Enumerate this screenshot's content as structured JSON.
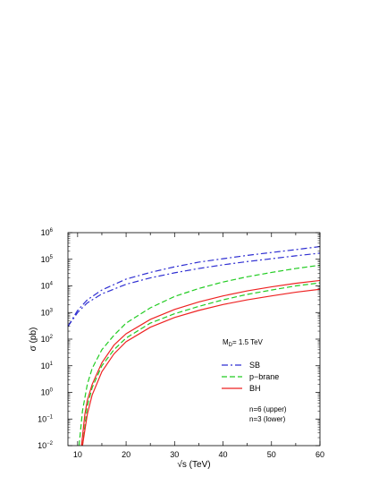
{
  "chart_data": {
    "type": "line",
    "xlabel": "√s  (TeV)",
    "ylabel": "σ  (pb)",
    "xlim": [
      8,
      60
    ],
    "ylim_log10": [
      -2,
      6
    ],
    "yscale": "log",
    "grid": false,
    "legend_position": "right",
    "x_ticks": [
      "10",
      "20",
      "30",
      "40",
      "50",
      "60"
    ],
    "y_tick_bases": [
      "10",
      "10",
      "10",
      "10",
      "10",
      "10",
      "10",
      "10",
      "10"
    ],
    "y_tick_exps": [
      "−2",
      "−1",
      "0",
      "1",
      "2",
      "3",
      "4",
      "5",
      "6"
    ],
    "annotations": {
      "md_main": "M",
      "md_sub": "D",
      "md_value": "= 1.5 TeV",
      "n_upper": "n=6 (upper)",
      "n_lower": "n=3 (lower)"
    },
    "series": [
      {
        "name": "SB",
        "variant": "upper",
        "color": "#2f2fd2",
        "dash": "dashdot",
        "x": [
          8,
          10,
          12,
          15,
          20,
          25,
          30,
          35,
          40,
          45,
          50,
          55,
          60
        ],
        "y": [
          300,
          1200,
          3000,
          7000,
          18000,
          32000,
          52000,
          78000,
          105000,
          140000,
          180000,
          230000,
          300000
        ]
      },
      {
        "name": "SB",
        "variant": "lower",
        "color": "#2f2fd2",
        "dash": "dashdot",
        "x": [
          8,
          10,
          12,
          15,
          20,
          25,
          30,
          35,
          40,
          45,
          50,
          55,
          60
        ],
        "y": [
          300,
          1000,
          2300,
          5000,
          11500,
          20000,
          31000,
          45000,
          62000,
          82000,
          105000,
          135000,
          170000
        ]
      },
      {
        "name": "p−brane",
        "variant": "upper",
        "color": "#22cc22",
        "dash": "dashed",
        "x": [
          10.3,
          11,
          12,
          13,
          15,
          17.5,
          20,
          25,
          30,
          35,
          40,
          45,
          50,
          55,
          60
        ],
        "y": [
          0.01,
          0.2,
          2,
          8,
          40,
          140,
          400,
          1500,
          4000,
          8000,
          14000,
          22000,
          32000,
          45000,
          60000
        ]
      },
      {
        "name": "p−brane",
        "variant": "lower",
        "color": "#22cc22",
        "dash": "dashed",
        "x": [
          11,
          12,
          13,
          15,
          17.5,
          20,
          25,
          30,
          35,
          40,
          45,
          50,
          55,
          60
        ],
        "y": [
          0.01,
          0.3,
          1.5,
          10,
          40,
          110,
          400,
          900,
          1700,
          3000,
          4800,
          7000,
          10000,
          13000
        ]
      },
      {
        "name": "BH",
        "variant": "upper",
        "color": "#ee2222",
        "dash": "solid",
        "x": [
          10.8,
          11.5,
          12,
          13,
          15,
          17.5,
          20,
          25,
          30,
          35,
          40,
          45,
          50,
          55,
          60
        ],
        "y": [
          0.01,
          0.15,
          0.5,
          2,
          13,
          60,
          160,
          550,
          1300,
          2500,
          4200,
          6500,
          9200,
          12500,
          16000
        ]
      },
      {
        "name": "BH",
        "variant": "lower",
        "color": "#ee2222",
        "dash": "solid",
        "x": [
          11,
          12,
          13,
          15,
          17.5,
          20,
          25,
          30,
          35,
          40,
          45,
          50,
          55,
          60
        ],
        "y": [
          0.01,
          0.15,
          0.8,
          6,
          28,
          80,
          280,
          650,
          1200,
          2000,
          3000,
          4200,
          5800,
          7500
        ]
      }
    ],
    "legend": [
      {
        "label": "SB",
        "color": "#2f2fd2",
        "dash": "dashdot"
      },
      {
        "label": "p−brane",
        "color": "#22cc22",
        "dash": "dashed"
      },
      {
        "label": "BH",
        "color": "#ee2222",
        "dash": "solid"
      }
    ]
  }
}
